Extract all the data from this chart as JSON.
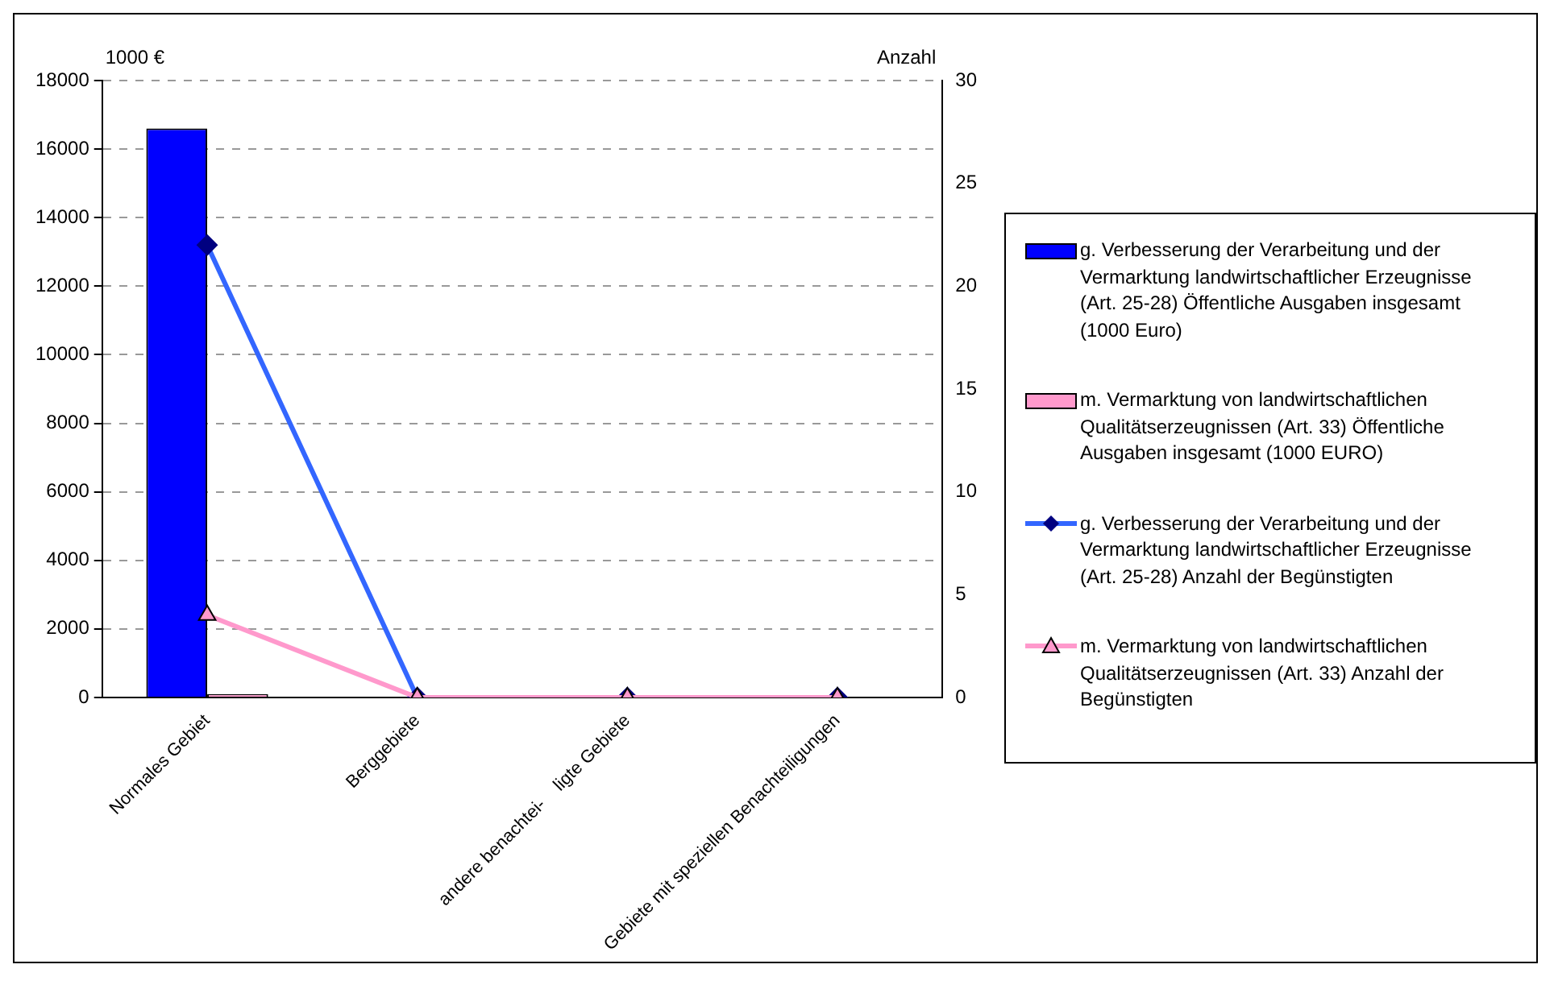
{
  "chart_data": {
    "type": "bar",
    "categories": [
      "Normales Gebiet",
      "Berggebiete",
      "andere benachtei-    ligte Gebiete",
      "Gebiete mit speziellen Benachteiligungen"
    ],
    "ylabel": "1000 €",
    "y2label": "Anzahl",
    "ylim": [
      0,
      18000
    ],
    "yticks": [
      0,
      2000,
      4000,
      6000,
      8000,
      10000,
      12000,
      14000,
      16000,
      18000
    ],
    "y2lim": [
      0,
      30
    ],
    "y2ticks": [
      0,
      5,
      10,
      15,
      20,
      25,
      30
    ],
    "grid": "y",
    "legend": "right",
    "series": [
      {
        "name": "g. Verbesserung der Verarbeitung und der Vermarktung landwirtschaftlicher Erzeugnisse (Art. 25-28) Öffentliche Ausgaben insgesamt (1000 Euro)",
        "color": "#0000ff",
        "values": [
          16600,
          0,
          0,
          0
        ]
      },
      {
        "name": "m. Vermarktung von landwirtschaftlichen Qualitätserzeugnissen (Art. 33) Öffentliche Ausgaben insgesamt (1000 EURO)",
        "color": "#ff99cc",
        "values": [
          100,
          0,
          0,
          0
        ]
      },
      {
        "type": "line",
        "axis": "y2",
        "marker": "diamond",
        "name": "g. Verbesserung der Verarbeitung und der Vermarktung landwirtschaftlicher Erzeugnisse (Art. 25-28) Anzahl der Begünstigten",
        "color": "#3366ff",
        "values": [
          22,
          0,
          0,
          0
        ]
      },
      {
        "type": "line",
        "axis": "y2",
        "marker": "triangle",
        "name": "m. Vermarktung von landwirtschaftlichen Qualitätserzeugnissen (Art. 33) Anzahl der Begünstigten",
        "color": "#ff99cc",
        "values": [
          4,
          0,
          0,
          0
        ]
      }
    ]
  }
}
